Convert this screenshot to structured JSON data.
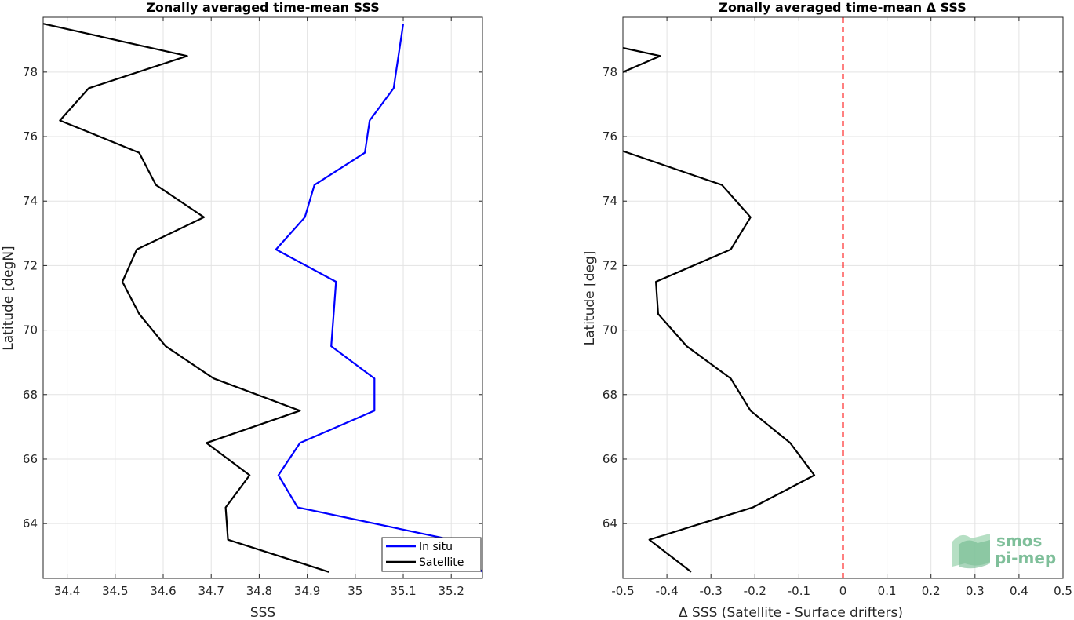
{
  "chart_data": [
    {
      "type": "line",
      "title": "Zonally averaged time-mean SSS",
      "xlabel": "SSS",
      "ylabel": "Latitude [degN]",
      "xlim": [
        34.35,
        35.265
      ],
      "ylim": [
        62.3,
        79.7
      ],
      "xticks": [
        "34.4",
        "34.5",
        "34.6",
        "34.7",
        "34.8",
        "34.9",
        "35",
        "35.1",
        "35.2"
      ],
      "yticks": [
        "64",
        "66",
        "68",
        "70",
        "72",
        "74",
        "76",
        "78"
      ],
      "grid": true,
      "legend_position": "bottom-right",
      "series": [
        {
          "name": "In situ",
          "color": "#0000ff",
          "points": [
            [
              35.1,
              79.5
            ],
            [
              35.09,
              78.5
            ],
            [
              35.085,
              78.0
            ],
            [
              35.08,
              77.5
            ],
            [
              35.03,
              76.5
            ],
            [
              35.02,
              75.5
            ],
            [
              34.915,
              74.5
            ],
            [
              34.895,
              73.5
            ],
            [
              34.835,
              72.5
            ],
            [
              34.96,
              71.5
            ],
            [
              34.955,
              70.5
            ],
            [
              34.95,
              69.5
            ],
            [
              35.04,
              68.5
            ],
            [
              35.04,
              67.5
            ],
            [
              34.885,
              66.5
            ],
            [
              34.84,
              65.5
            ],
            [
              34.88,
              64.5
            ],
            [
              35.2,
              63.5
            ],
            [
              35.265,
              62.5
            ]
          ]
        },
        {
          "name": "Satellite",
          "color": "#000000",
          "points": [
            [
              34.35,
              79.5
            ],
            [
              34.65,
              78.5
            ],
            [
              34.445,
              77.5
            ],
            [
              34.385,
              76.5
            ],
            [
              34.55,
              75.5
            ],
            [
              34.585,
              74.5
            ],
            [
              34.685,
              73.5
            ],
            [
              34.545,
              72.5
            ],
            [
              34.515,
              71.5
            ],
            [
              34.55,
              70.5
            ],
            [
              34.605,
              69.5
            ],
            [
              34.705,
              68.5
            ],
            [
              34.885,
              67.5
            ],
            [
              34.69,
              66.5
            ],
            [
              34.78,
              65.5
            ],
            [
              34.73,
              64.5
            ],
            [
              34.735,
              63.5
            ],
            [
              34.945,
              62.5
            ]
          ]
        }
      ]
    },
    {
      "type": "line",
      "title": "Zonally averaged time-mean Δ SSS",
      "xlabel": "Δ SSS (Satellite - Surface drifters)",
      "ylabel": "Latitude [deg]",
      "xlim": [
        -0.5,
        0.5
      ],
      "ylim": [
        62.3,
        79.7
      ],
      "xticks": [
        "-0.5",
        "-0.4",
        "-0.3",
        "-0.2",
        "-0.1",
        "0",
        "0.1",
        "0.2",
        "0.3",
        "0.4",
        "0.5"
      ],
      "yticks": [
        "64",
        "66",
        "68",
        "70",
        "72",
        "74",
        "76",
        "78"
      ],
      "grid": true,
      "reference_line": {
        "x": 0,
        "color": "#ff0000",
        "style": "dashed"
      },
      "series": [
        {
          "color": "#000000",
          "segments": [
            [
              [
                -0.5,
                78.75
              ],
              [
                -0.415,
                78.5
              ],
              [
                -0.5,
                78.0
              ]
            ],
            [
              [
                -0.5,
                75.55
              ],
              [
                -0.275,
                74.5
              ],
              [
                -0.21,
                73.5
              ],
              [
                -0.255,
                72.5
              ],
              [
                -0.425,
                71.5
              ],
              [
                -0.42,
                70.5
              ],
              [
                -0.355,
                69.5
              ],
              [
                -0.255,
                68.5
              ],
              [
                -0.21,
                67.5
              ],
              [
                -0.12,
                66.5
              ],
              [
                -0.065,
                65.5
              ],
              [
                -0.205,
                64.5
              ],
              [
                -0.44,
                63.5
              ],
              [
                -0.345,
                62.5
              ]
            ]
          ]
        }
      ]
    }
  ],
  "logo": {
    "line1": "smos",
    "line2": "pi-mep"
  }
}
